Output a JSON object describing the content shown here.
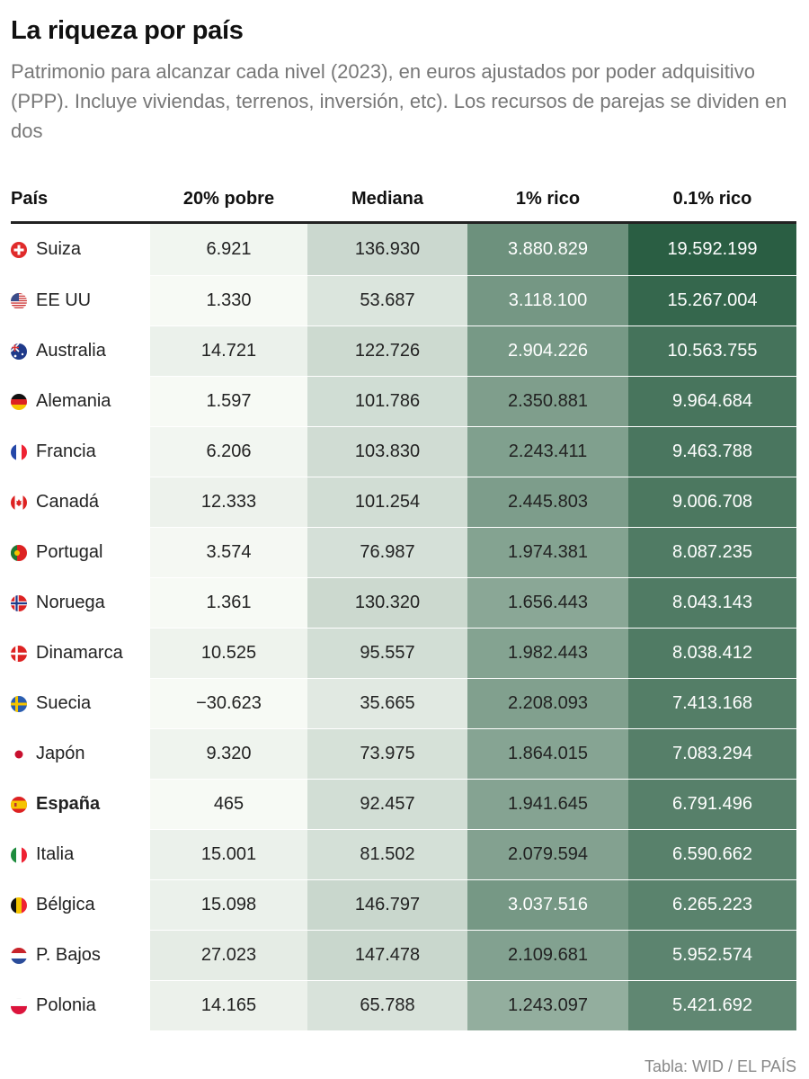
{
  "title": "La riqueza por país",
  "subtitle": "Patrimonio para alcanzar cada nivel (2023), en euros ajustados por poder adquisitivo (PPP). Incluye viviendas, terrenos, inversión, etc). Los recursos de parejas se dividen en dos",
  "source": "Tabla: WID / EL PAÍS",
  "chart_data": {
    "type": "table",
    "columns": [
      "País",
      "20% pobre",
      "Mediana",
      "1% rico",
      "0.1% rico"
    ],
    "rows": [
      {
        "country": "Suiza",
        "flag": "swiss-flag-icon",
        "bold": false,
        "poor20": "6.921",
        "median": "136.930",
        "top1": "3.880.829",
        "top01": "19.592.199"
      },
      {
        "country": "EE UU",
        "flag": "usa-flag-icon",
        "bold": false,
        "poor20": "1.330",
        "median": "53.687",
        "top1": "3.118.100",
        "top01": "15.267.004"
      },
      {
        "country": "Australia",
        "flag": "australia-flag-icon",
        "bold": false,
        "poor20": "14.721",
        "median": "122.726",
        "top1": "2.904.226",
        "top01": "10.563.755"
      },
      {
        "country": "Alemania",
        "flag": "germany-flag-icon",
        "bold": false,
        "poor20": "1.597",
        "median": "101.786",
        "top1": "2.350.881",
        "top01": "9.964.684"
      },
      {
        "country": "Francia",
        "flag": "france-flag-icon",
        "bold": false,
        "poor20": "6.206",
        "median": "103.830",
        "top1": "2.243.411",
        "top01": "9.463.788"
      },
      {
        "country": "Canadá",
        "flag": "canada-flag-icon",
        "bold": false,
        "poor20": "12.333",
        "median": "101.254",
        "top1": "2.445.803",
        "top01": "9.006.708"
      },
      {
        "country": "Portugal",
        "flag": "portugal-flag-icon",
        "bold": false,
        "poor20": "3.574",
        "median": "76.987",
        "top1": "1.974.381",
        "top01": "8.087.235"
      },
      {
        "country": "Noruega",
        "flag": "norway-flag-icon",
        "bold": false,
        "poor20": "1.361",
        "median": "130.320",
        "top1": "1.656.443",
        "top01": "8.043.143"
      },
      {
        "country": "Dinamarca",
        "flag": "denmark-flag-icon",
        "bold": false,
        "poor20": "10.525",
        "median": "95.557",
        "top1": "1.982.443",
        "top01": "8.038.412"
      },
      {
        "country": "Suecia",
        "flag": "sweden-flag-icon",
        "bold": false,
        "poor20": "−30.623",
        "median": "35.665",
        "top1": "2.208.093",
        "top01": "7.413.168"
      },
      {
        "country": "Japón",
        "flag": "japan-flag-icon",
        "bold": false,
        "poor20": "9.320",
        "median": "73.975",
        "top1": "1.864.015",
        "top01": "7.083.294"
      },
      {
        "country": "España",
        "flag": "spain-flag-icon",
        "bold": true,
        "poor20": "465",
        "median": "92.457",
        "top1": "1.941.645",
        "top01": "6.791.496"
      },
      {
        "country": "Italia",
        "flag": "italy-flag-icon",
        "bold": false,
        "poor20": "15.001",
        "median": "81.502",
        "top1": "2.079.594",
        "top01": "6.590.662"
      },
      {
        "country": "Bélgica",
        "flag": "belgium-flag-icon",
        "bold": false,
        "poor20": "15.098",
        "median": "146.797",
        "top1": "3.037.516",
        "top01": "6.265.223"
      },
      {
        "country": "P. Bajos",
        "flag": "netherlands-flag-icon",
        "bold": false,
        "poor20": "27.023",
        "median": "147.478",
        "top1": "2.109.681",
        "top01": "5.952.574"
      },
      {
        "country": "Polonia",
        "flag": "poland-flag-icon",
        "bold": false,
        "poor20": "14.165",
        "median": "65.788",
        "top1": "1.243.097",
        "top01": "5.421.692"
      }
    ],
    "colors": {
      "low": "#f7faf5",
      "high": "#2a5e43",
      "text_light": "#ffffff",
      "text_dark": "#222222"
    }
  }
}
